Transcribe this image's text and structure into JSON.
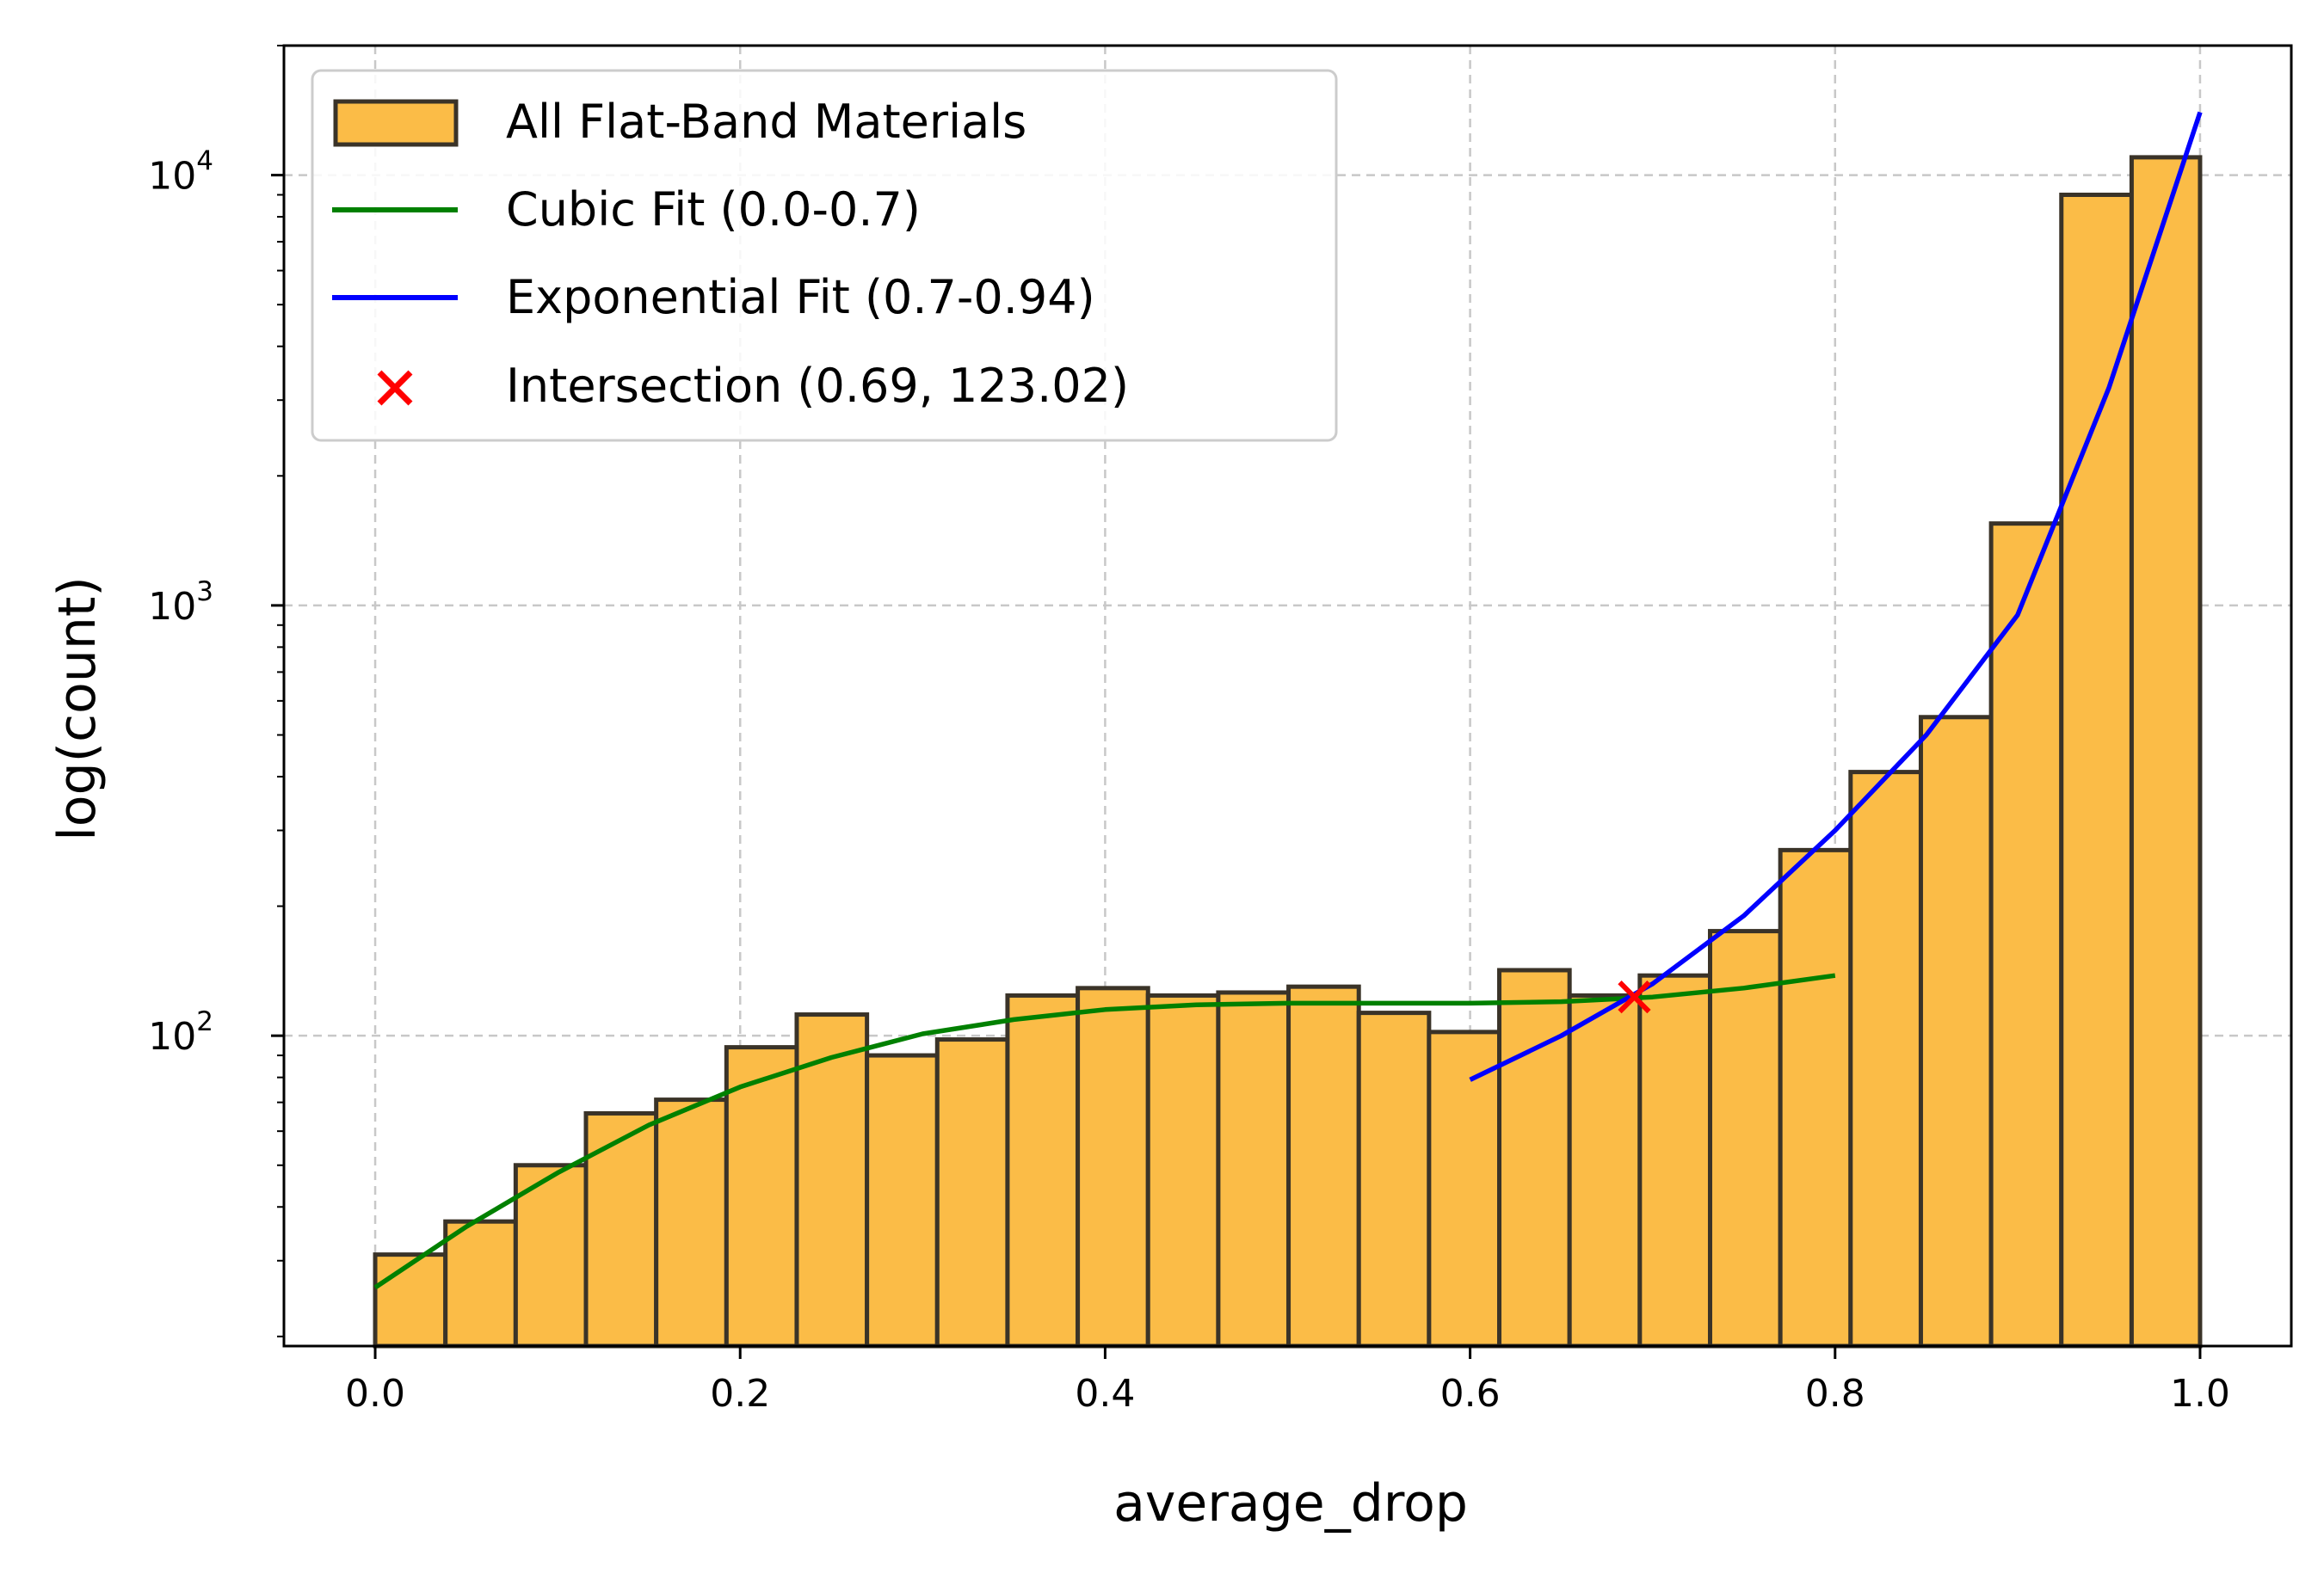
{
  "chart_data": {
    "type": "bar",
    "xlabel": "average_drop",
    "ylabel": "log(count)",
    "xlim": [
      -0.05,
      1.05
    ],
    "ylim": [
      19,
      20000
    ],
    "y_scale": "log",
    "grid": true,
    "legend_position": "top-left",
    "x_ticks": [
      "0.0",
      "0.2",
      "0.4",
      "0.6",
      "0.8",
      "1.0"
    ],
    "y_ticks": [
      {
        "base": "10",
        "exp": "2"
      },
      {
        "base": "10",
        "exp": "3"
      },
      {
        "base": "10",
        "exp": "4"
      }
    ],
    "colors": {
      "bars": "#fbbc47",
      "bar_edge": "#3a3328",
      "cubic": "#008000",
      "exponential": "#0000ff",
      "intersection": "#ff0000",
      "grid": "#c8c8c8"
    },
    "histogram": {
      "name": "All Flat-Band Materials",
      "bin_edges": [
        0.0,
        0.0385,
        0.077,
        0.1155,
        0.154,
        0.1925,
        0.231,
        0.2695,
        0.308,
        0.3465,
        0.385,
        0.4235,
        0.462,
        0.5005,
        0.539,
        0.5775,
        0.616,
        0.6545,
        0.693,
        0.7315,
        0.77,
        0.8085,
        0.847,
        0.8855,
        0.924,
        0.9625,
        1.0
      ],
      "counts": [
        31,
        37,
        50,
        66,
        71,
        94,
        112,
        90,
        98,
        124,
        129,
        124,
        126,
        130,
        113,
        102,
        142,
        124,
        138,
        175,
        270,
        410,
        550,
        1550,
        9000,
        11000
      ]
    },
    "series": [
      {
        "name": "Cubic Fit (0.0-0.7)",
        "x": [
          0.0,
          0.05,
          0.1,
          0.15,
          0.2,
          0.25,
          0.3,
          0.35,
          0.4,
          0.45,
          0.5,
          0.55,
          0.6,
          0.65,
          0.7,
          0.75,
          0.8
        ],
        "y": [
          26,
          36,
          48,
          62,
          76,
          89,
          101,
          109,
          115,
          118,
          119,
          119,
          119,
          120,
          123,
          129,
          138
        ]
      },
      {
        "name": "Exponential Fit (0.7-0.94)",
        "x": [
          0.6,
          0.65,
          0.7,
          0.75,
          0.8,
          0.85,
          0.9,
          0.95,
          1.0
        ],
        "y": [
          79,
          100,
          132,
          190,
          300,
          500,
          950,
          3200,
          14000
        ]
      }
    ],
    "intersection": {
      "name": "Intersection (0.69, 123.02)",
      "x": 0.69,
      "y": 123.02
    }
  }
}
